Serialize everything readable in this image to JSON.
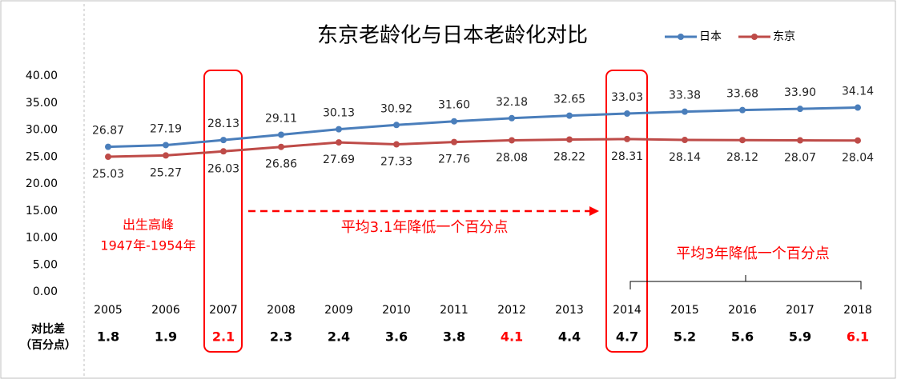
{
  "chart_data": {
    "type": "line",
    "title": "东京老龄化与日本老龄化对比",
    "categories": [
      "2005",
      "2006",
      "2007",
      "2008",
      "2009",
      "2010",
      "2011",
      "2012",
      "2013",
      "2014",
      "2015",
      "2016",
      "2017",
      "2018"
    ],
    "series": [
      {
        "name": "日本",
        "color": "#4a7ebb",
        "values": [
          26.87,
          27.19,
          28.13,
          29.11,
          30.13,
          30.92,
          31.6,
          32.18,
          32.65,
          33.03,
          33.38,
          33.68,
          33.9,
          34.14
        ],
        "value_labels": [
          "26.87",
          "27.19",
          "28.13",
          "29.11",
          "30.13",
          "30.92",
          "31.60",
          "32.18",
          "32.65",
          "33.03",
          "33.38",
          "33.68",
          "33.90",
          "34.14"
        ]
      },
      {
        "name": "东京",
        "color": "#be4b48",
        "values": [
          25.03,
          25.27,
          26.03,
          26.86,
          27.69,
          27.33,
          27.76,
          28.08,
          28.22,
          28.31,
          28.14,
          28.12,
          28.07,
          28.04
        ],
        "value_labels": [
          "25.03",
          "25.27",
          "26.03",
          "26.86",
          "27.69",
          "27.33",
          "27.76",
          "28.08",
          "28.22",
          "28.31",
          "28.14",
          "28.12",
          "28.07",
          "28.04"
        ]
      }
    ],
    "ylim": [
      0,
      40
    ],
    "yticks": [
      {
        "value": 0,
        "label": "0.00"
      },
      {
        "value": 5,
        "label": "5.00"
      },
      {
        "value": 10,
        "label": "10.00"
      },
      {
        "value": 15,
        "label": "15.00"
      },
      {
        "value": 20,
        "label": "20.00"
      },
      {
        "value": 25,
        "label": "25.00"
      },
      {
        "value": 30,
        "label": "30.00"
      },
      {
        "value": 35,
        "label": "35.00"
      },
      {
        "value": 40,
        "label": "40.00"
      }
    ],
    "grid": false,
    "legend": "top-right",
    "difference": {
      "label_lines": [
        "对比差",
        "（百分点）"
      ],
      "values": [
        1.8,
        1.9,
        2.1,
        2.3,
        2.4,
        3.6,
        3.8,
        4.1,
        4.4,
        4.7,
        5.2,
        5.6,
        5.9,
        6.1
      ],
      "colors": [
        "#000",
        "#000",
        "#ff0000",
        "#000",
        "#000",
        "#000",
        "#000",
        "#ff0000",
        "#000",
        "#000",
        "#000",
        "#000",
        "#000",
        "#ff0000"
      ]
    },
    "annotations": [
      "出生高峰",
      "1947年-1954年",
      "平均3.1年降低一个百分点",
      "平均3年降低一个百分点"
    ]
  }
}
